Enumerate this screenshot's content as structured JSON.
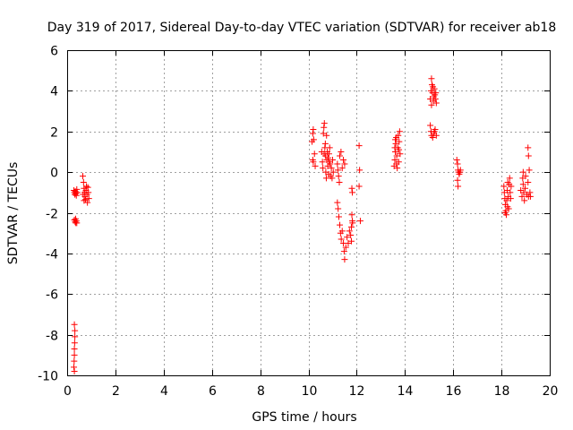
{
  "chart_data": {
    "type": "scatter",
    "title": "Day 319 of 2017, Sidereal Day-to-day VTEC variation (SDTVAR) for receiver ab18",
    "xlabel": "GPS time / hours",
    "ylabel": "SDTVAR / TECUs",
    "xlim": [
      0,
      20
    ],
    "ylim": [
      -10,
      6
    ],
    "xticks": [
      0,
      2,
      4,
      6,
      8,
      10,
      12,
      14,
      16,
      18,
      20
    ],
    "yticks": [
      -10,
      -8,
      -6,
      -4,
      -2,
      0,
      2,
      4,
      6
    ],
    "grid": true,
    "marker": "+",
    "color": "#ff0000",
    "series": [
      {
        "name": "SDTVAR",
        "points": [
          [
            0.28,
            -0.9
          ],
          [
            0.3,
            -1.0
          ],
          [
            0.32,
            -1.1
          ],
          [
            0.34,
            -0.95
          ],
          [
            0.36,
            -1.05
          ],
          [
            0.4,
            -0.85
          ],
          [
            0.42,
            -1.0
          ],
          [
            0.38,
            -1.15
          ],
          [
            0.3,
            -2.35
          ],
          [
            0.33,
            -2.45
          ],
          [
            0.36,
            -2.5
          ],
          [
            0.38,
            -2.4
          ],
          [
            0.35,
            -2.3
          ],
          [
            0.4,
            -2.5
          ],
          [
            0.3,
            -7.5
          ],
          [
            0.32,
            -7.8
          ],
          [
            0.32,
            -8.1
          ],
          [
            0.31,
            -8.4
          ],
          [
            0.3,
            -8.7
          ],
          [
            0.3,
            -9.0
          ],
          [
            0.29,
            -9.3
          ],
          [
            0.28,
            -9.6
          ],
          [
            0.3,
            -9.8
          ],
          [
            0.65,
            -0.2
          ],
          [
            0.68,
            -0.5
          ],
          [
            0.7,
            -0.8
          ],
          [
            0.72,
            -1.0
          ],
          [
            0.74,
            -1.2
          ],
          [
            0.76,
            -1.35
          ],
          [
            0.78,
            -0.9
          ],
          [
            0.8,
            -0.7
          ],
          [
            0.82,
            -1.1
          ],
          [
            0.84,
            -1.5
          ],
          [
            0.86,
            -0.75
          ],
          [
            0.88,
            -1.0
          ],
          [
            0.9,
            -1.3
          ],
          [
            0.7,
            -1.4
          ],
          [
            0.66,
            -1.1
          ],
          [
            10.15,
            1.5
          ],
          [
            10.18,
            1.9
          ],
          [
            10.2,
            2.1
          ],
          [
            10.22,
            1.6
          ],
          [
            10.25,
            0.9
          ],
          [
            10.2,
            0.5
          ],
          [
            10.28,
            0.3
          ],
          [
            10.18,
            0.6
          ],
          [
            10.55,
            1.0
          ],
          [
            10.58,
            0.5
          ],
          [
            10.6,
            0.2
          ],
          [
            10.62,
            1.9
          ],
          [
            10.64,
            2.2
          ],
          [
            10.66,
            2.4
          ],
          [
            10.68,
            1.2
          ],
          [
            10.7,
            0.8
          ],
          [
            10.72,
            0.0
          ],
          [
            10.74,
            -0.3
          ],
          [
            10.76,
            0.6
          ],
          [
            10.78,
            1.0
          ],
          [
            10.8,
            0.3
          ],
          [
            10.82,
            0.7
          ],
          [
            10.84,
            -0.1
          ],
          [
            10.86,
            0.5
          ],
          [
            10.88,
            1.2
          ],
          [
            10.9,
            0.4
          ],
          [
            10.92,
            -0.2
          ],
          [
            10.95,
            0.2
          ],
          [
            10.98,
            -0.3
          ],
          [
            11.0,
            0.6
          ],
          [
            11.03,
            0.0
          ],
          [
            10.65,
            0.9
          ],
          [
            10.7,
            1.4
          ],
          [
            10.75,
            1.8
          ],
          [
            10.85,
            0.9
          ],
          [
            11.2,
            0.4
          ],
          [
            11.22,
            0.1
          ],
          [
            11.25,
            -0.2
          ],
          [
            11.28,
            -0.5
          ],
          [
            11.3,
            0.8
          ],
          [
            11.35,
            1.0
          ],
          [
            11.4,
            0.2
          ],
          [
            11.45,
            0.6
          ],
          [
            11.5,
            0.4
          ],
          [
            11.2,
            -1.5
          ],
          [
            11.23,
            -1.8
          ],
          [
            11.26,
            -2.2
          ],
          [
            11.3,
            -2.6
          ],
          [
            11.33,
            -3.0
          ],
          [
            11.36,
            -3.3
          ],
          [
            11.4,
            -2.9
          ],
          [
            11.45,
            -3.5
          ],
          [
            11.48,
            -3.9
          ],
          [
            11.5,
            -4.3
          ],
          [
            11.55,
            -3.7
          ],
          [
            11.6,
            -3.2
          ],
          [
            11.65,
            -3.5
          ],
          [
            11.7,
            -2.9
          ],
          [
            11.8,
            -0.8
          ],
          [
            11.82,
            -1.0
          ],
          [
            11.8,
            -2.1
          ],
          [
            11.82,
            -2.4
          ],
          [
            11.78,
            -2.7
          ],
          [
            11.75,
            -3.1
          ],
          [
            11.78,
            -3.4
          ],
          [
            11.83,
            -2.5
          ],
          [
            12.1,
            1.3
          ],
          [
            12.12,
            0.1
          ],
          [
            12.1,
            -0.7
          ],
          [
            12.15,
            -2.4
          ],
          [
            13.55,
            0.3
          ],
          [
            13.58,
            0.6
          ],
          [
            13.6,
            1.0
          ],
          [
            13.62,
            1.4
          ],
          [
            13.64,
            1.7
          ],
          [
            13.66,
            0.8
          ],
          [
            13.68,
            0.2
          ],
          [
            13.7,
            1.2
          ],
          [
            13.72,
            1.8
          ],
          [
            13.74,
            0.5
          ],
          [
            13.76,
            1.5
          ],
          [
            13.78,
            2.0
          ],
          [
            13.8,
            0.9
          ],
          [
            13.65,
            0.4
          ],
          [
            13.6,
            1.6
          ],
          [
            13.75,
            1.1
          ],
          [
            13.58,
            1.2
          ],
          [
            15.05,
            3.6
          ],
          [
            15.08,
            4.0
          ],
          [
            15.1,
            4.6
          ],
          [
            15.12,
            4.3
          ],
          [
            15.14,
            3.9
          ],
          [
            15.16,
            4.2
          ],
          [
            15.18,
            3.5
          ],
          [
            15.2,
            3.7
          ],
          [
            15.22,
            4.1
          ],
          [
            15.24,
            3.8
          ],
          [
            15.26,
            3.6
          ],
          [
            15.28,
            3.9
          ],
          [
            15.3,
            3.4
          ],
          [
            15.1,
            3.3
          ],
          [
            15.05,
            2.3
          ],
          [
            15.08,
            2.0
          ],
          [
            15.1,
            1.8
          ],
          [
            15.15,
            1.7
          ],
          [
            15.2,
            1.9
          ],
          [
            15.25,
            2.1
          ],
          [
            15.3,
            1.8
          ],
          [
            15.22,
            2.0
          ],
          [
            16.15,
            0.6
          ],
          [
            16.18,
            0.4
          ],
          [
            16.2,
            0.1
          ],
          [
            16.22,
            0.0
          ],
          [
            16.25,
            -0.1
          ],
          [
            16.28,
            0.0
          ],
          [
            16.3,
            0.1
          ],
          [
            16.18,
            -0.4
          ],
          [
            16.2,
            -0.7
          ],
          [
            18.1,
            -0.7
          ],
          [
            18.12,
            -1.0
          ],
          [
            18.14,
            -1.3
          ],
          [
            18.16,
            -1.6
          ],
          [
            18.18,
            -1.9
          ],
          [
            18.2,
            -2.1
          ],
          [
            18.22,
            -1.4
          ],
          [
            18.24,
            -0.9
          ],
          [
            18.26,
            -0.5
          ],
          [
            18.28,
            -1.2
          ],
          [
            18.3,
            -1.8
          ],
          [
            18.32,
            -0.6
          ],
          [
            18.34,
            -0.3
          ],
          [
            18.36,
            -1.0
          ],
          [
            18.38,
            -1.3
          ],
          [
            18.4,
            -0.7
          ],
          [
            18.15,
            -2.0
          ],
          [
            18.25,
            -1.7
          ],
          [
            18.8,
            -0.9
          ],
          [
            18.85,
            -1.2
          ],
          [
            18.88,
            -0.3
          ],
          [
            18.9,
            -0.6
          ],
          [
            18.92,
            -1.0
          ],
          [
            18.95,
            -1.4
          ],
          [
            18.98,
            -0.8
          ],
          [
            19.0,
            -0.2
          ],
          [
            19.05,
            -1.1
          ],
          [
            19.1,
            -0.5
          ],
          [
            19.12,
            -1.2
          ],
          [
            19.1,
            1.2
          ],
          [
            19.12,
            0.8
          ],
          [
            19.15,
            0.1
          ],
          [
            19.18,
            -1.0
          ],
          [
            19.2,
            -1.2
          ],
          [
            18.9,
            0.0
          ]
        ]
      }
    ]
  }
}
